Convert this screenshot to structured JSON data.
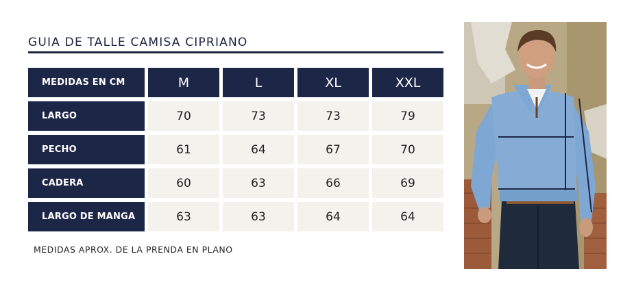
{
  "title": "GUIA DE TALLE CAMISA CIPRIANO",
  "table": {
    "header_label": "MEDIDAS EN CM",
    "sizes": [
      "M",
      "L",
      "XL",
      "XXL"
    ],
    "rows": [
      {
        "label": "LARGO",
        "values": [
          "70",
          "73",
          "73",
          "79"
        ]
      },
      {
        "label": "PECHO",
        "values": [
          "61",
          "64",
          "67",
          "70"
        ]
      },
      {
        "label": "CADERA",
        "values": [
          "60",
          "63",
          "66",
          "69"
        ]
      },
      {
        "label": "LARGO DE MANGA",
        "values": [
          "63",
          "63",
          "64",
          "64"
        ]
      }
    ]
  },
  "note": "MEDIDAS APROX. DE LA PRENDA EN PLANO",
  "colors": {
    "navy": "#1c2647",
    "cell_bg": "#f4f2ec",
    "sweater": "#7fa7d3"
  },
  "photo": {
    "icon": "model-photo-icon"
  }
}
